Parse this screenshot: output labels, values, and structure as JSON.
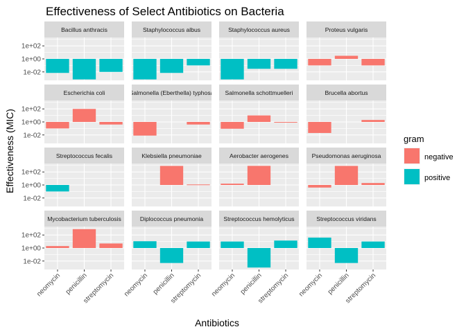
{
  "chart_data": {
    "type": "bar",
    "title": "Effectiveness of Select Antibiotics on Bacteria",
    "xlabel": "Antibiotics",
    "ylabel": "Effectiveness (MIC)",
    "y_scale": "log10",
    "ylim": [
      0.0005,
      2000
    ],
    "y_ticks": [
      {
        "value": 0.01,
        "label": "1e-02"
      },
      {
        "value": 1,
        "label": "1e+00"
      },
      {
        "value": 100,
        "label": "1e+02"
      }
    ],
    "categories": [
      "neomycin",
      "penicillin",
      "streptomycin"
    ],
    "facet_layout": {
      "rows": 4,
      "cols": 4
    },
    "legend": {
      "title": "gram",
      "position": "right",
      "entries": [
        {
          "name": "negative",
          "color": "#F8766D"
        },
        {
          "name": "positive",
          "color": "#00BFC4"
        }
      ]
    },
    "colors": {
      "negative": "#F8766D",
      "positive": "#00BFC4",
      "panel_bg": "#EBEBEB",
      "strip_bg": "#D9D9D9",
      "grid": "#FFFFFF"
    },
    "panels": [
      {
        "name": "Bacillus anthracis",
        "gram": "positive",
        "values": [
          0.007,
          0.0007,
          0.01
        ]
      },
      {
        "name": "Staphylococcus albus",
        "gram": "positive",
        "values": [
          0.0007,
          0.007,
          0.1
        ]
      },
      {
        "name": "Staphylococcus aureus",
        "gram": "positive",
        "values": [
          0.0007,
          0.03,
          0.03
        ]
      },
      {
        "name": "Proteus vulgaris",
        "gram": "negative",
        "values": [
          0.1,
          3,
          0.1
        ]
      },
      {
        "name": "Escherichia coli",
        "gram": "negative",
        "values": [
          0.1,
          100,
          0.4
        ]
      },
      {
        "name": "Salmonella (Eberthella) typhosa",
        "gram": "negative",
        "values": [
          0.008,
          null,
          0.4
        ]
      },
      {
        "name": "Salmonella schottmuelleri",
        "gram": "negative",
        "values": [
          0.09,
          10,
          0.8
        ]
      },
      {
        "name": "Brucella abortus",
        "gram": "negative",
        "values": [
          0.02,
          null,
          2
        ]
      },
      {
        "name": "Streptococcus fecalis",
        "gram": "positive",
        "values": [
          0.1,
          null,
          null
        ]
      },
      {
        "name": "Klebsiella pneumoniae",
        "gram": "negative",
        "values": [
          null,
          850,
          1.2
        ]
      },
      {
        "name": "Aerobacter aerogenes",
        "gram": "negative",
        "values": [
          1.6,
          870,
          null
        ]
      },
      {
        "name": "Pseudomonas aeruginosa",
        "gram": "negative",
        "values": [
          0.4,
          850,
          2
        ]
      },
      {
        "name": "Mycobacterium tuberculosis",
        "gram": "negative",
        "values": [
          2,
          800,
          5
        ]
      },
      {
        "name": "Diplococcus pneumonia",
        "gram": "positive",
        "values": [
          11,
          0.005,
          10
        ]
      },
      {
        "name": "Streptococcus hemolyticus",
        "gram": "positive",
        "values": [
          10,
          0.001,
          14
        ]
      },
      {
        "name": "Streptococcus viridans",
        "gram": "positive",
        "values": [
          40,
          0.005,
          10
        ]
      }
    ]
  }
}
